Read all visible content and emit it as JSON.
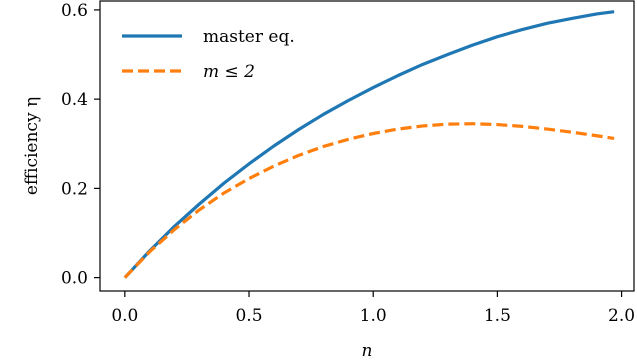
{
  "chart_data": {
    "type": "line",
    "xlabel": "n",
    "ylabel": "efficiency η",
    "xlim": [
      -0.1,
      2.05
    ],
    "ylim": [
      -0.03,
      0.62
    ],
    "xticks": [
      0.0,
      0.5,
      1.0,
      1.5,
      2.0
    ],
    "xtick_labels": [
      "0.0",
      "0.5",
      "1.0",
      "1.5",
      "2.0"
    ],
    "yticks": [
      0.0,
      0.2,
      0.4,
      0.6
    ],
    "ytick_labels": [
      "0.0",
      "0.2",
      "0.4",
      "0.6"
    ],
    "grid": false,
    "legend_position": "top-left",
    "series": [
      {
        "name": "master eq.",
        "style": "solid",
        "color": "#1f77b4",
        "x": [
          0.0,
          0.1,
          0.2,
          0.3,
          0.4,
          0.5,
          0.6,
          0.7,
          0.8,
          0.9,
          1.0,
          1.1,
          1.2,
          1.3,
          1.4,
          1.5,
          1.6,
          1.7,
          1.8,
          1.9,
          1.97
        ],
        "y": [
          0.0,
          0.06,
          0.115,
          0.165,
          0.212,
          0.255,
          0.295,
          0.332,
          0.366,
          0.397,
          0.426,
          0.453,
          0.478,
          0.5,
          0.521,
          0.54,
          0.556,
          0.57,
          0.581,
          0.591,
          0.596
        ]
      },
      {
        "name": "m ≤ 2",
        "style": "dashed",
        "color": "#ff7f0e",
        "x": [
          0.0,
          0.1,
          0.2,
          0.3,
          0.4,
          0.5,
          0.6,
          0.7,
          0.8,
          0.9,
          1.0,
          1.1,
          1.2,
          1.3,
          1.4,
          1.5,
          1.6,
          1.7,
          1.8,
          1.9,
          1.97
        ],
        "y": [
          0.0,
          0.058,
          0.108,
          0.152,
          0.19,
          0.222,
          0.25,
          0.274,
          0.294,
          0.31,
          0.323,
          0.333,
          0.34,
          0.344,
          0.345,
          0.343,
          0.339,
          0.333,
          0.326,
          0.318,
          0.312
        ]
      }
    ]
  }
}
